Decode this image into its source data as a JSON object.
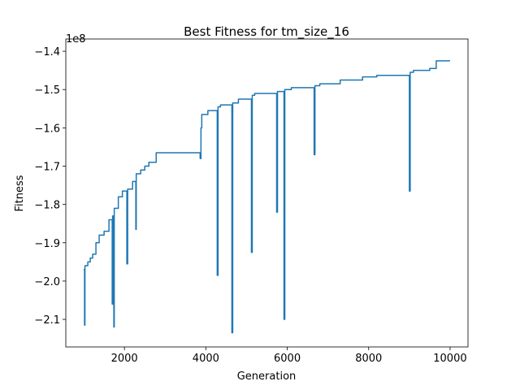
{
  "chart_data": {
    "type": "line",
    "title": "Best Fitness for tm_size_16",
    "xlabel": "Generation",
    "ylabel": "Fitness",
    "y_offset_label": "1e8",
    "color": "#1f77b4",
    "xlim": [
      560,
      10440
    ],
    "xticks": [
      2000,
      4000,
      6000,
      8000,
      10000
    ],
    "ylim": [
      -2.172,
      -1.368
    ],
    "yticks": [
      {
        "value": -2.1,
        "label": "−2.1"
      },
      {
        "value": -2.0,
        "label": "−2.0"
      },
      {
        "value": -1.9,
        "label": "−1.9"
      },
      {
        "value": -1.8,
        "label": "−1.8"
      },
      {
        "value": -1.7,
        "label": "−1.7"
      },
      {
        "value": -1.6,
        "label": "−1.6"
      },
      {
        "value": -1.5,
        "label": "−1.5"
      },
      {
        "value": -1.4,
        "label": "−1.4"
      }
    ],
    "x": [
      1000,
      1020,
      1020,
      1030,
      1030,
      1100,
      1100,
      1160,
      1160,
      1220,
      1220,
      1300,
      1300,
      1380,
      1380,
      1500,
      1500,
      1620,
      1620,
      1700,
      1700,
      1710,
      1710,
      1740,
      1740,
      1750,
      1750,
      1850,
      1850,
      1950,
      1950,
      2060,
      2060,
      2080,
      2080,
      2200,
      2200,
      2280,
      2280,
      2290,
      2290,
      2400,
      2400,
      2500,
      2500,
      2600,
      2600,
      2780,
      2780,
      3860,
      3860,
      3880,
      3880,
      3900,
      3900,
      4050,
      4050,
      4280,
      4280,
      4300,
      4300,
      4360,
      4360,
      4640,
      4640,
      4660,
      4660,
      4800,
      4800,
      5120,
      5120,
      5140,
      5140,
      5200,
      5200,
      5740,
      5740,
      5760,
      5760,
      5920,
      5920,
      5940,
      5940,
      6100,
      6100,
      6660,
      6660,
      6680,
      6680,
      6800,
      6800,
      7300,
      7300,
      7850,
      7850,
      8200,
      8200,
      9000,
      9000,
      9020,
      9020,
      9100,
      9100,
      9500,
      9500,
      9660,
      9660,
      10000
    ],
    "values": [
      -1.97,
      -1.97,
      -2.115,
      -2.115,
      -1.96,
      -1.96,
      -1.95,
      -1.95,
      -1.94,
      -1.94,
      -1.93,
      -1.93,
      -1.9,
      -1.9,
      -1.88,
      -1.88,
      -1.87,
      -1.87,
      -1.84,
      -1.84,
      -2.06,
      -2.06,
      -1.83,
      -1.83,
      -2.12,
      -2.12,
      -1.81,
      -1.81,
      -1.78,
      -1.78,
      -1.765,
      -1.765,
      -1.955,
      -1.955,
      -1.76,
      -1.76,
      -1.74,
      -1.74,
      -1.865,
      -1.865,
      -1.72,
      -1.72,
      -1.71,
      -1.71,
      -1.7,
      -1.7,
      -1.69,
      -1.69,
      -1.665,
      -1.665,
      -1.68,
      -1.68,
      -1.6,
      -1.6,
      -1.565,
      -1.565,
      -1.555,
      -1.555,
      -1.985,
      -1.985,
      -1.545,
      -1.545,
      -1.54,
      -1.54,
      -2.135,
      -2.135,
      -1.535,
      -1.535,
      -1.525,
      -1.525,
      -1.925,
      -1.925,
      -1.515,
      -1.515,
      -1.51,
      -1.51,
      -1.82,
      -1.82,
      -1.505,
      -1.505,
      -2.1,
      -2.1,
      -1.5,
      -1.5,
      -1.495,
      -1.495,
      -1.67,
      -1.67,
      -1.49,
      -1.49,
      -1.485,
      -1.485,
      -1.475,
      -1.475,
      -1.467,
      -1.467,
      -1.463,
      -1.463,
      -1.765,
      -1.765,
      -1.455,
      -1.455,
      -1.45,
      -1.45,
      -1.445,
      -1.445,
      -1.425,
      -1.425
    ]
  }
}
